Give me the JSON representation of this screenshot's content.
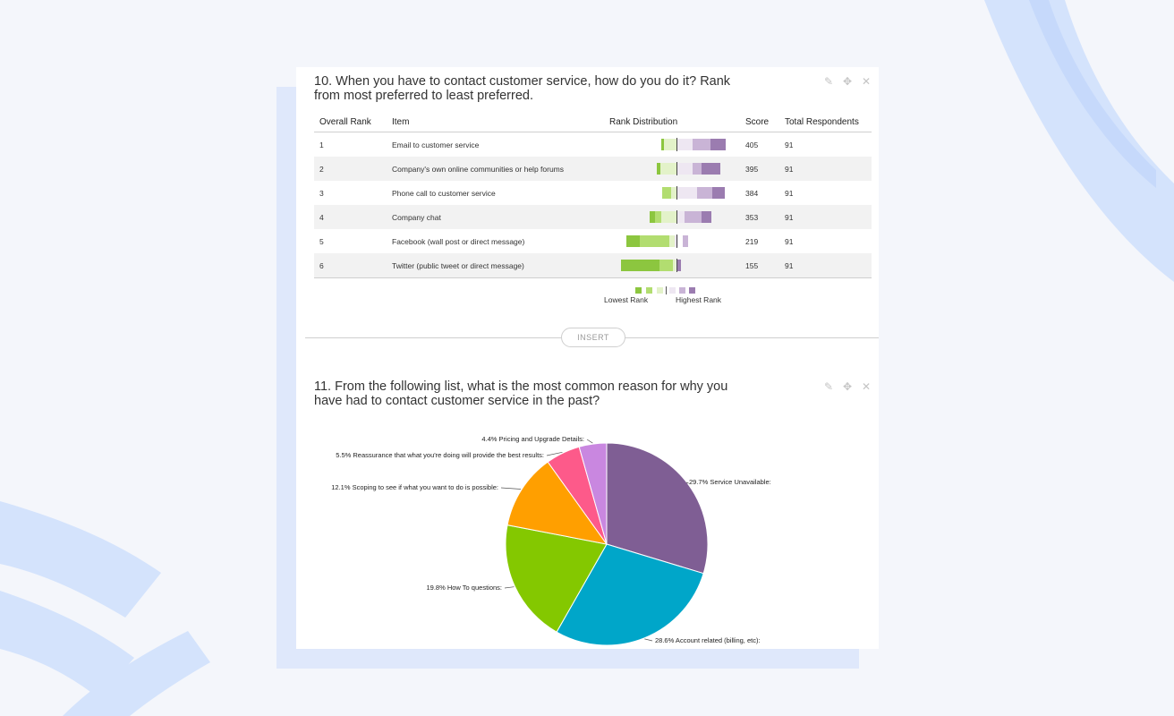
{
  "colors": {
    "page_bg": "#f4f6fb",
    "decor": "#d4e3fc",
    "accent_back_card": "#dfe8fb",
    "card": "#ffffff",
    "lowest_rank_dark": "#8cc63f",
    "lowest_rank_mid": "#b2dd70",
    "lowest_rank_light": "#e3f2c9",
    "highest_rank_light": "#eee7f2",
    "highest_rank_mid": "#c9b4d6",
    "highest_rank_dark": "#9b7cb0"
  },
  "q10": {
    "title": "10. When you have to contact customer service, how do you do it? Rank from most preferred to least preferred.",
    "actions": [
      {
        "icon": "pencil-icon",
        "glyph": "✎"
      },
      {
        "icon": "move-icon",
        "glyph": "✥"
      },
      {
        "icon": "close-icon",
        "glyph": "✕"
      }
    ],
    "columns": [
      "Overall Rank",
      "Item",
      "Rank Distribution",
      "Score",
      "Total Respondents"
    ],
    "rows": [
      {
        "rank": "1",
        "item": "Email to customer service",
        "score": "405",
        "respondents": "91"
      },
      {
        "rank": "2",
        "item": "Company's own online communities or help forums",
        "score": "395",
        "respondents": "91"
      },
      {
        "rank": "3",
        "item": "Phone call to customer service",
        "score": "384",
        "respondents": "91"
      },
      {
        "rank": "4",
        "item": "Company chat",
        "score": "353",
        "respondents": "91"
      },
      {
        "rank": "5",
        "item": "Facebook (wall post or direct message)",
        "score": "219",
        "respondents": "91"
      },
      {
        "rank": "6",
        "item": "Twitter (public tweet or direct message)",
        "score": "155",
        "respondents": "91"
      }
    ],
    "legend": {
      "low": "Lowest Rank",
      "high": "Highest Rank"
    }
  },
  "insert_label": "INSERT",
  "q11": {
    "title": "11. From the following list, what is the most common reason for why you have had to contact customer service in the past?",
    "actions": [
      {
        "icon": "pencil-icon",
        "glyph": "✎"
      },
      {
        "icon": "move-icon",
        "glyph": "✥"
      },
      {
        "icon": "close-icon",
        "glyph": "✕"
      }
    ]
  },
  "chart_data": {
    "type": "pie",
    "title": "",
    "series": [
      {
        "name": "Service Unavailable:",
        "value": 29.7,
        "label": "29.7% Service Unavailable:",
        "color": "#7f5e94"
      },
      {
        "name": "Account related (billing, etc):",
        "value": 28.6,
        "label": "28.6% Account related (billing, etc):",
        "color": "#00a6c9"
      },
      {
        "name": "How To questions:",
        "value": 19.8,
        "label": "19.8% How To questions:",
        "color": "#84c800"
      },
      {
        "name": "Scoping to see if what you want to do is possible:",
        "value": 12.1,
        "label": "12.1% Scoping to see if what you want to do is possible:",
        "color": "#ff9f00"
      },
      {
        "name": "Reassurance that what you're doing will provide the best results:",
        "value": 5.5,
        "label": "5.5% Reassurance that what you're doing will provide the best results:",
        "color": "#fd5a8a"
      },
      {
        "name": "Pricing and Upgrade Details:",
        "value": 4.4,
        "label": "4.4% Pricing and Upgrade Details:",
        "color": "#c987e0"
      }
    ]
  }
}
